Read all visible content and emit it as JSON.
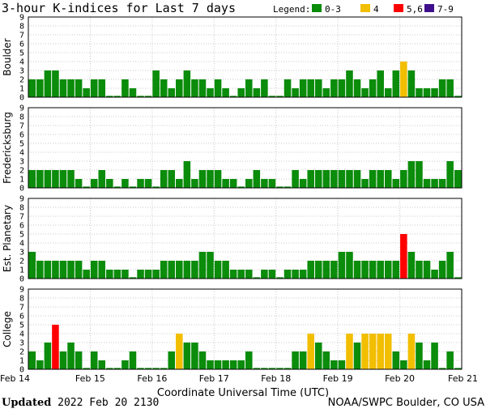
{
  "chart_data": {
    "type": "bar",
    "title": "3-hour K-indices for Last 7 days",
    "legend": {
      "title": "Legend:",
      "placement": "top-right",
      "items": [
        {
          "label": "0-3",
          "color": "#0b8c0b"
        },
        {
          "label": "4",
          "color": "#f2be00"
        },
        {
          "label": "5,6",
          "color": "#ff0000"
        },
        {
          "label": "7-9",
          "color": "#3f108c"
        }
      ]
    },
    "ylim": [
      0,
      9
    ],
    "yticks": [
      "0",
      "1",
      "2",
      "3",
      "4",
      "5",
      "6",
      "7",
      "8",
      "9"
    ],
    "xlabel": "Coordinate Universal Time (UTC)",
    "xticks": [
      "Feb 14",
      "Feb 15",
      "Feb 16",
      "Feb 17",
      "Feb 18",
      "Feb 19",
      "Feb 20",
      "Feb 21"
    ],
    "interval_hours": 3,
    "grid": true,
    "panels": [
      {
        "name": "Boulder",
        "values": [
          2,
          2,
          3,
          3,
          2,
          2,
          2,
          1,
          2,
          2,
          0,
          0,
          2,
          1,
          0,
          0,
          3,
          2,
          1,
          2,
          3,
          2,
          2,
          1,
          2,
          1,
          0,
          1,
          2,
          1,
          2,
          0,
          0,
          2,
          1,
          2,
          2,
          2,
          1,
          2,
          2,
          3,
          2,
          1,
          2,
          3,
          1,
          3,
          4,
          3,
          1,
          1,
          1,
          2,
          2,
          0
        ]
      },
      {
        "name": "Fredericksburg",
        "values": [
          2,
          2,
          2,
          2,
          2,
          2,
          1,
          0,
          1,
          2,
          1,
          0,
          1,
          0,
          1,
          1,
          0,
          2,
          2,
          1,
          3,
          1,
          2,
          2,
          2,
          1,
          1,
          0,
          1,
          2,
          1,
          1,
          0,
          0,
          2,
          1,
          2,
          2,
          2,
          2,
          2,
          2,
          2,
          1,
          2,
          2,
          2,
          1,
          2,
          3,
          3,
          1,
          1,
          1,
          3,
          2,
          0
        ]
      },
      {
        "name": "Est. Planetary",
        "values": [
          3,
          2,
          2,
          2,
          2,
          2,
          2,
          1,
          2,
          2,
          1,
          1,
          1,
          0,
          1,
          1,
          1,
          2,
          2,
          2,
          2,
          2,
          3,
          3,
          2,
          2,
          1,
          1,
          1,
          0,
          1,
          1,
          0,
          1,
          1,
          1,
          2,
          2,
          2,
          2,
          3,
          3,
          2,
          2,
          2,
          2,
          2,
          2,
          5,
          3,
          2,
          2,
          1,
          2,
          3,
          0
        ]
      },
      {
        "name": "College",
        "values": [
          2,
          1,
          3,
          5,
          2,
          3,
          2,
          0,
          2,
          1,
          0,
          0,
          1,
          2,
          0,
          0,
          0,
          0,
          2,
          4,
          3,
          3,
          2,
          1,
          1,
          1,
          1,
          1,
          2,
          0,
          0,
          0,
          0,
          0,
          2,
          2,
          4,
          3,
          2,
          1,
          1,
          4,
          3,
          4,
          4,
          4,
          4,
          2,
          1,
          4,
          3,
          1,
          3,
          0,
          2,
          0
        ]
      }
    ]
  },
  "footer": {
    "updated_label": "Updated",
    "updated_value": "2022 Feb 20 2130",
    "credit": "NOAA/SWPC Boulder, CO USA"
  }
}
